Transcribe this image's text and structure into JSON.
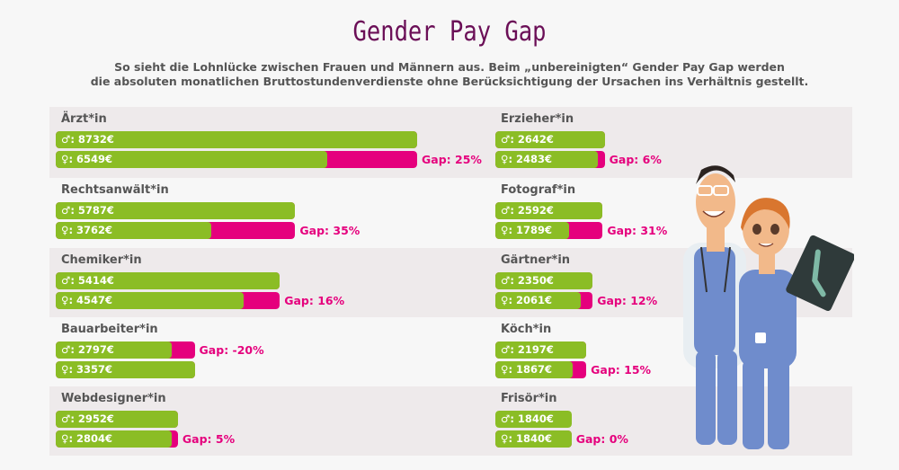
{
  "header": {
    "title": "Gender Pay Gap",
    "subtitle_line1": "So sieht die Lohnlücke zwischen Frauen und Männern aus. Beim „unbereinigten“ Gender Pay Gap werden",
    "subtitle_line2": "die absoluten monatlichen Bruttostundenverdienste ohne Berücksichtigung der Ursachen ins Verhältnis gestellt."
  },
  "colors": {
    "male_bar": "#8bbd25",
    "gap_bar": "#e5007d",
    "title": "#6b0f57",
    "band": "#eeeaeb"
  },
  "chart_data": {
    "type": "bar",
    "title": "Gender Pay Gap",
    "unit": "€",
    "male_symbol": "♂",
    "female_symbol": "♀",
    "gap_prefix": "Gap: ",
    "series": [
      {
        "name": "♂"
      },
      {
        "name": "♀"
      }
    ],
    "left": [
      {
        "job": "Ärzt*in",
        "male": 8732,
        "female": 6549,
        "gap": "25%"
      },
      {
        "job": "Rechtsanwält*in",
        "male": 5787,
        "female": 3762,
        "gap": "35%"
      },
      {
        "job": "Chemiker*in",
        "male": 5414,
        "female": 4547,
        "gap": "16%"
      },
      {
        "job": "Bauarbeiter*in",
        "male": 2797,
        "female": 3357,
        "gap": "-20%"
      },
      {
        "job": "Webdesigner*in",
        "male": 2952,
        "female": 2804,
        "gap": "5%"
      }
    ],
    "right": [
      {
        "job": "Erzieher*in",
        "male": 2642,
        "female": 2483,
        "gap": "6%"
      },
      {
        "job": "Fotograf*in",
        "male": 2592,
        "female": 1789,
        "gap": "31%"
      },
      {
        "job": "Gärtner*in",
        "male": 2350,
        "female": 2061,
        "gap": "12%"
      },
      {
        "job": "Köch*in",
        "male": 2197,
        "female": 1867,
        "gap": "15%"
      },
      {
        "job": "Frisör*in",
        "male": 1840,
        "female": 1840,
        "gap": "0%"
      }
    ]
  }
}
